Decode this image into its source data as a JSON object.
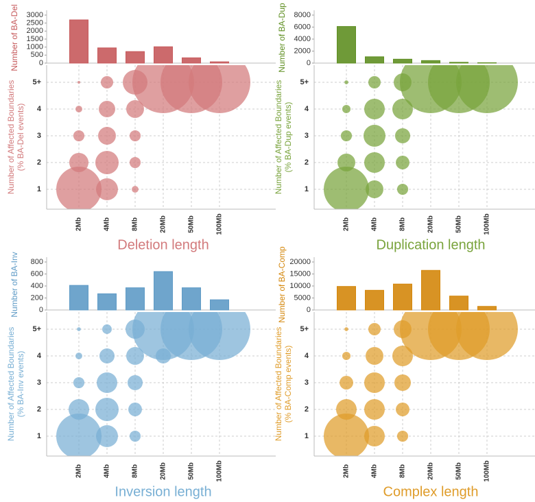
{
  "chart_data": [
    {
      "type": "bar",
      "ylabel": "Number of BA-Del",
      "values": [
        2700,
        950,
        720,
        1020,
        330,
        80
      ],
      "color": "#c65a5c",
      "ylim": [
        0,
        3000
      ],
      "yticks": [
        0,
        500,
        1000,
        1500,
        2000,
        2500,
        3000
      ]
    },
    {
      "type": "bubble",
      "xlabel": "Deletion length",
      "ylabel": [
        "Number of Affected Boundaries",
        "(% BA-Del events)"
      ],
      "categories": [
        "2Mb",
        "4Mb",
        "8Mb",
        "20Mb",
        "50Mb",
        "100Mb"
      ],
      "ycategories": [
        "1",
        "2",
        "3",
        "4",
        "5+"
      ],
      "sizes": [
        [
          53.8,
          12.6,
          1.2,
          null,
          null,
          null
        ],
        [
          9.7,
          14.3,
          3.2,
          null,
          null,
          null
        ],
        [
          3.2,
          8.3,
          3.2,
          null,
          null,
          null
        ],
        [
          1.2,
          7.1,
          8.3,
          null,
          null,
          null
        ],
        [
          0.2,
          4,
          16,
          100,
          100,
          100
        ]
      ],
      "color": "#d27a7c",
      "grid": true
    },
    {
      "type": "bar",
      "ylabel": "Number of BA-Dup",
      "values": [
        6100,
        1050,
        650,
        420,
        130,
        60
      ],
      "color": "#5f8f22",
      "ylim": [
        0,
        8000
      ],
      "yticks": [
        0,
        2000,
        4000,
        6000,
        8000
      ]
    },
    {
      "type": "bubble",
      "xlabel": "Duplication length",
      "ylabel": [
        "Number of Affected Boundaries",
        "(% BA-Dup events)"
      ],
      "categories": [
        "2Mb",
        "4Mb",
        "8Mb",
        "20Mb",
        "50Mb",
        "100Mb"
      ],
      "ycategories": [
        "1",
        "2",
        "3",
        "4",
        "5+"
      ],
      "sizes": [
        [
          53.8,
          8.3,
          3.2,
          null,
          null,
          null
        ],
        [
          8.3,
          11.1,
          4.9,
          null,
          null,
          null
        ],
        [
          3.2,
          12.6,
          6,
          null,
          null,
          null
        ],
        [
          1.8,
          11.1,
          11.1,
          null,
          null,
          null
        ],
        [
          0.4,
          4,
          8.3,
          100,
          100,
          100
        ]
      ],
      "color": "#79a33c",
      "grid": true
    },
    {
      "type": "bar",
      "ylabel": "Number of BA-Inv",
      "values": [
        410,
        270,
        370,
        640,
        370,
        170
      ],
      "color": "#5f9bc6",
      "ylim": [
        0,
        800
      ],
      "yticks": [
        0,
        200,
        400,
        600,
        800
      ]
    },
    {
      "type": "bubble",
      "xlabel": "Inversion length",
      "ylabel": [
        "Number of Affected Boundaries",
        "(% BA-Inv events)"
      ],
      "categories": [
        "2Mb",
        "4Mb",
        "8Mb",
        "20Mb",
        "50Mb",
        "100Mb"
      ],
      "ycategories": [
        "1",
        "2",
        "3",
        "4",
        "5+"
      ],
      "sizes": [
        [
          53.8,
          12.6,
          3.2,
          null,
          null,
          null
        ],
        [
          11.1,
          14.3,
          4.9,
          null,
          null,
          null
        ],
        [
          3.2,
          11.1,
          6,
          null,
          null,
          null
        ],
        [
          1.2,
          6,
          8.3,
          6,
          null,
          null
        ],
        [
          0.4,
          2.4,
          9.7,
          100,
          100,
          100
        ]
      ],
      "color": "#78afd4",
      "grid": true
    },
    {
      "type": "bar",
      "ylabel": "Number of BA-Comp",
      "values": [
        9800,
        8200,
        10800,
        16500,
        5800,
        1500
      ],
      "color": "#d4870c",
      "ylim": [
        0,
        20000
      ],
      "yticks": [
        0,
        5000,
        10000,
        15000,
        20000
      ]
    },
    {
      "type": "bubble",
      "xlabel": "Complex length",
      "ylabel": [
        "Number of Affected Boundaries",
        "(% BA-Comp events)"
      ],
      "categories": [
        "2Mb",
        "4Mb",
        "8Mb",
        "20Mb",
        "50Mb",
        "100Mb"
      ],
      "ycategories": [
        "1",
        "2",
        "3",
        "4",
        "5+"
      ],
      "sizes": [
        [
          53.8,
          11.1,
          3.2,
          null,
          null,
          null
        ],
        [
          11.1,
          11.1,
          4.9,
          null,
          null,
          null
        ],
        [
          4.9,
          11.1,
          7.1,
          null,
          null,
          null
        ],
        [
          1.8,
          8.3,
          11.1,
          null,
          null,
          null
        ],
        [
          0.4,
          4,
          8.3,
          100,
          100,
          100
        ]
      ],
      "color": "#df9c2a",
      "grid": true
    }
  ]
}
